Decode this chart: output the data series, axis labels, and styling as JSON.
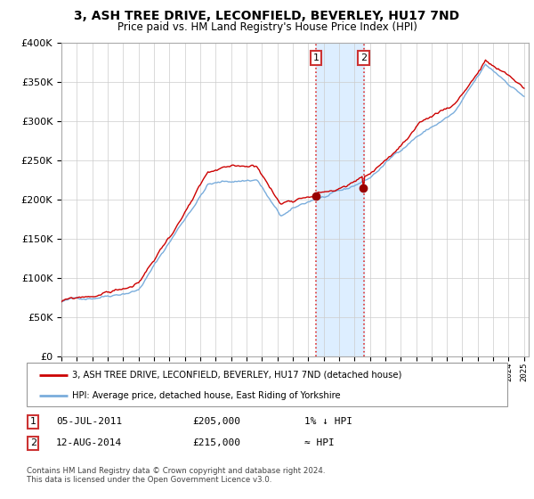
{
  "title": "3, ASH TREE DRIVE, LECONFIELD, BEVERLEY, HU17 7ND",
  "subtitle": "Price paid vs. HM Land Registry's House Price Index (HPI)",
  "legend_line1": "3, ASH TREE DRIVE, LECONFIELD, BEVERLEY, HU17 7ND (detached house)",
  "legend_line2": "HPI: Average price, detached house, East Riding of Yorkshire",
  "transaction1_date": "05-JUL-2011",
  "transaction1_price": "£205,000",
  "transaction1_hpi": "1% ↓ HPI",
  "transaction2_date": "12-AUG-2014",
  "transaction2_price": "£215,000",
  "transaction2_hpi": "≈ HPI",
  "footer": "Contains HM Land Registry data © Crown copyright and database right 2024.\nThis data is licensed under the Open Government Licence v3.0.",
  "ylim": [
    0,
    400000
  ],
  "yticks": [
    0,
    50000,
    100000,
    150000,
    200000,
    250000,
    300000,
    350000,
    400000
  ],
  "hpi_color": "#7aaddc",
  "price_color": "#cc0000",
  "highlight_color": "#ddeeff",
  "marker1_x": 2011.5,
  "marker2_x": 2014.6,
  "background_color": "#ffffff",
  "grid_color": "#cccccc",
  "title_fontsize": 10,
  "subtitle_fontsize": 8.5
}
